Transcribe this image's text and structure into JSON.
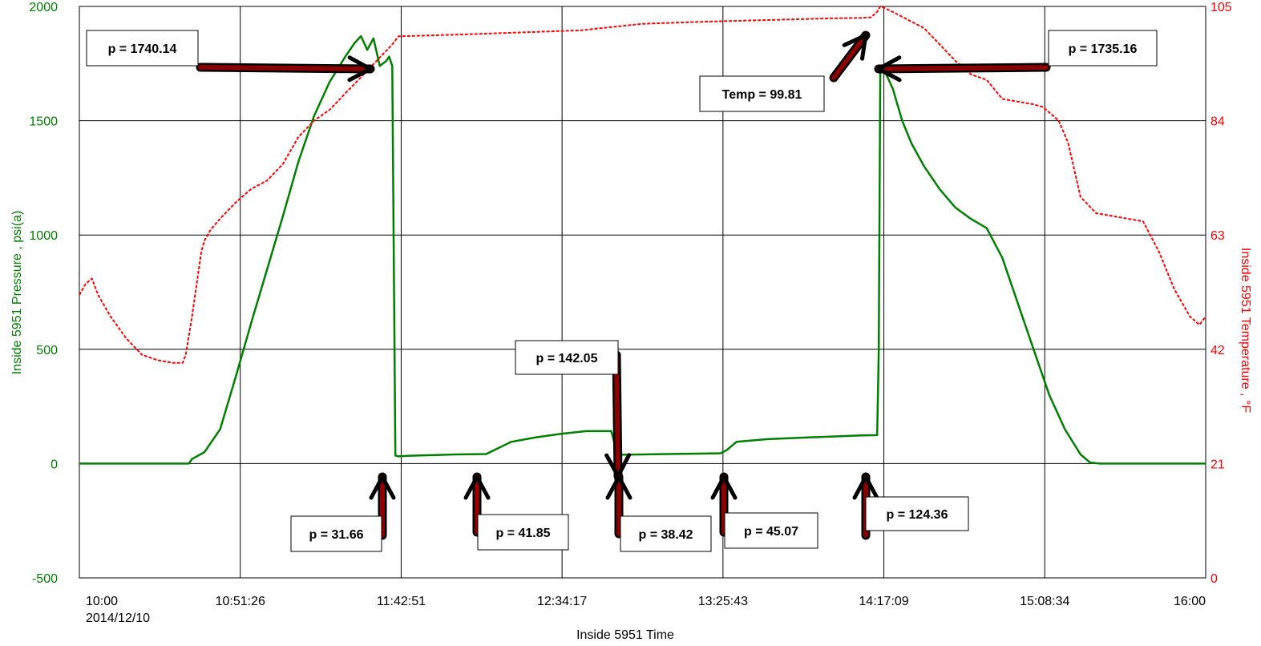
{
  "chart_data": {
    "type": "line",
    "title": "",
    "xlabel": "Inside 5951 Time",
    "x_date_label": "2014/12/10",
    "x_ticks": [
      "10:00",
      "10:51:26",
      "11:42:51",
      "12:34:17",
      "13:25:43",
      "14:17:09",
      "15:08:34",
      "16:00"
    ],
    "x_ticks_minutes": [
      0,
      51.43,
      102.86,
      154.28,
      205.71,
      257.14,
      308.57,
      360
    ],
    "xlim": [
      0,
      360
    ],
    "y_left": {
      "label": "Inside 5951 Pressure , psi(a)",
      "ticks": [
        -500,
        0,
        500,
        1000,
        1500,
        2000
      ],
      "lim": [
        -500,
        2000
      ],
      "color": "#008000"
    },
    "y_right": {
      "label": "Inside 5951 Temperature , °F",
      "ticks": [
        0,
        21,
        42,
        63,
        84,
        105
      ],
      "lim": [
        0,
        105
      ],
      "color": "#ff0000"
    },
    "grid": true,
    "series": [
      {
        "name": "",
        "axis": "left",
        "color": "#008000",
        "x": [
          0,
          20,
          35,
          36,
          40,
          45,
          50,
          55,
          60,
          65,
          70,
          75,
          80,
          85,
          88,
          90,
          92,
          94,
          96,
          98,
          99,
          100,
          101,
          102,
          105,
          110,
          115,
          120,
          125,
          130,
          138,
          146,
          154,
          162,
          170,
          172,
          173,
          175,
          180,
          190,
          200,
          205,
          207,
          210,
          220,
          230,
          240,
          250,
          255,
          255.5,
          256,
          258,
          260,
          263,
          266,
          270,
          275,
          280,
          285,
          290,
          295,
          300,
          305,
          310,
          315,
          320,
          323,
          326,
          330,
          340,
          350,
          360
        ],
        "y": [
          0,
          0,
          0,
          20,
          50,
          150,
          380,
          620,
          850,
          1080,
          1320,
          1520,
          1670,
          1780,
          1840,
          1870,
          1810,
          1860,
          1740,
          1760,
          1780,
          1740,
          35,
          31.66,
          34,
          36,
          38,
          40,
          41,
          41.85,
          95,
          115,
          130,
          142.05,
          142.05,
          40,
          38.42,
          39,
          40,
          42,
          44,
          45.07,
          60,
          95,
          107,
          113,
          118,
          123,
          124.36,
          500,
          1735.16,
          1700,
          1640,
          1500,
          1400,
          1300,
          1200,
          1120,
          1070,
          1030,
          900,
          700,
          500,
          300,
          150,
          40,
          5,
          0,
          0,
          0,
          0,
          0
        ]
      },
      {
        "name": "",
        "axis": "right",
        "color": "#ff0000",
        "dashed": true,
        "x": [
          0,
          2,
          4,
          6,
          10,
          15,
          20,
          25,
          30,
          33,
          34,
          36,
          37,
          38,
          39,
          40,
          42,
          45,
          50,
          55,
          60,
          65,
          70,
          75,
          80,
          85,
          90,
          95,
          100,
          102,
          120,
          140,
          160,
          180,
          190,
          200,
          220,
          240,
          250,
          253,
          255,
          256,
          257,
          260,
          265,
          270,
          275,
          280,
          285,
          290,
          295,
          300,
          305,
          308,
          310,
          313,
          316,
          320,
          325,
          330,
          335,
          340,
          345,
          350,
          355,
          358,
          360
        ],
        "y": [
          52,
          54,
          55,
          52,
          48,
          44,
          41,
          40,
          39.5,
          39.5,
          41,
          48,
          52,
          56,
          60,
          62,
          64,
          66,
          69,
          71.5,
          73,
          76,
          81,
          84,
          86,
          89,
          92,
          95,
          98,
          99.5,
          99.8,
          100.2,
          100.6,
          101.8,
          102,
          102.2,
          102.5,
          102.8,
          102.9,
          103,
          104,
          105,
          104.8,
          104,
          102.5,
          101,
          98,
          95,
          92.5,
          91.5,
          88,
          87.5,
          87,
          86.5,
          85.5,
          84,
          80,
          70,
          67,
          66.5,
          66,
          65.5,
          60,
          53,
          48,
          46.5,
          48
        ]
      }
    ],
    "annotations": [
      {
        "text": "p = 1740.14",
        "target": [
          97,
          1740
        ]
      },
      {
        "text": "p = 1735.16",
        "target": [
          256,
          1735
        ]
      },
      {
        "text": "Temp = 99.81",
        "target": [
          252,
          1890
        ]
      },
      {
        "text": "p = 142.05",
        "target": [
          172,
          142
        ]
      },
      {
        "text": "p = 31.66",
        "target": [
          101,
          31.66
        ]
      },
      {
        "text": "p = 41.85",
        "target": [
          130,
          41.85
        ]
      },
      {
        "text": "p = 38.42",
        "target": [
          173,
          38.42
        ]
      },
      {
        "text": "p = 45.07",
        "target": [
          205,
          45.07
        ]
      },
      {
        "text": "p = 124.36",
        "target": [
          254,
          124.36
        ]
      }
    ]
  }
}
